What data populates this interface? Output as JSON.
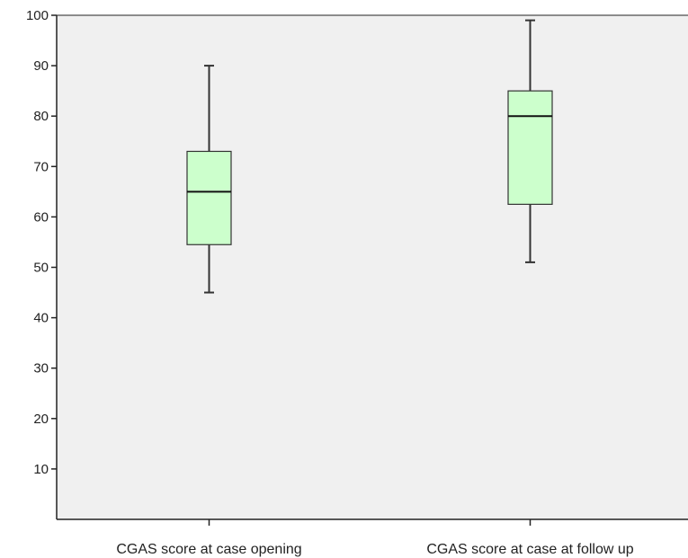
{
  "chart_data": {
    "type": "boxplot",
    "title": "",
    "xlabel": "",
    "ylabel": "",
    "ylim": [
      0,
      100
    ],
    "yticks": [
      10,
      20,
      30,
      40,
      50,
      60,
      70,
      80,
      90,
      100
    ],
    "grid": false,
    "categories": [
      "CGAS score at case opening",
      "CGAS score at case at follow up"
    ],
    "boxes": [
      {
        "category": "CGAS score at case opening",
        "min": 45,
        "q1": 54.5,
        "median": 65,
        "q3": 73,
        "max": 90
      },
      {
        "category": "CGAS score at case at follow up",
        "min": 51,
        "q1": 62.5,
        "median": 80,
        "q3": 85,
        "max": 99
      }
    ],
    "colors": {
      "box_fill": "#ccffcc",
      "box_stroke": "#333333",
      "plot_background": "#f0f0f0",
      "axis": "#222222"
    }
  }
}
